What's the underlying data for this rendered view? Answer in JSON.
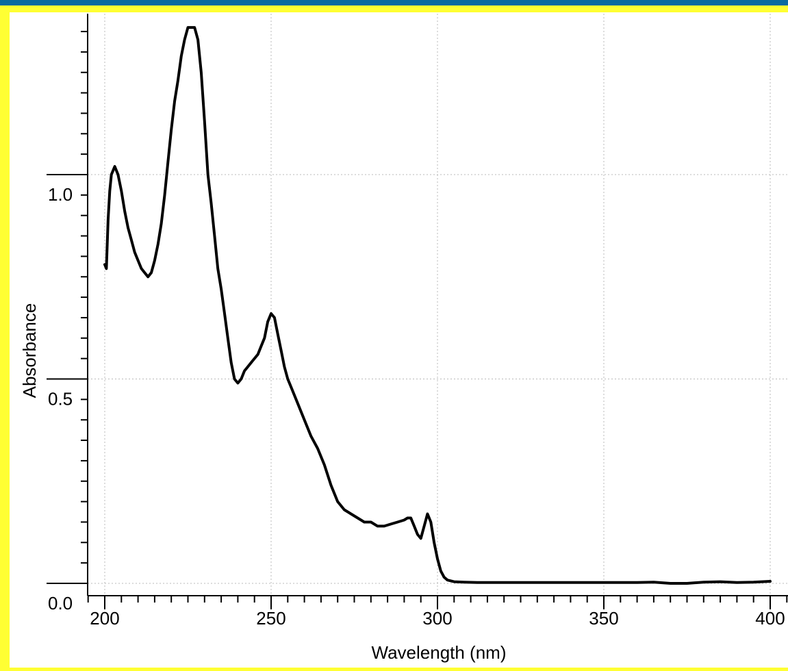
{
  "colors": {
    "outer_border": "#0a6aa0",
    "inner_border": "#ffff33",
    "plot_background": "#ffffff",
    "grid": "#b8b8b8",
    "axis": "#000000",
    "series_line": "#000000"
  },
  "chart_data": {
    "type": "line",
    "title": "",
    "xlabel": "Wavelength (nm)",
    "ylabel": "Absorbance",
    "xlim": [
      195,
      405
    ],
    "ylim": [
      -0.02,
      1.4
    ],
    "x_ticks": [
      200,
      250,
      300,
      350,
      400
    ],
    "x_tick_labels": [
      "200",
      "250",
      "300",
      "350",
      "400"
    ],
    "y_ticks": [
      0.0,
      0.5,
      1.0
    ],
    "y_tick_labels": [
      "0.0",
      "0.5",
      "1.0"
    ],
    "grid": true,
    "legend": "none",
    "series": [
      {
        "x": [
          200,
          200.5,
          201,
          201.5,
          202,
          203,
          204,
          205,
          206,
          207,
          208,
          209,
          210,
          211,
          212,
          213,
          214,
          215,
          216,
          217,
          218,
          219,
          220,
          221,
          222,
          223,
          224,
          225,
          226,
          227,
          228,
          229,
          230,
          231,
          232,
          233,
          234,
          235,
          236,
          237,
          238,
          239,
          240,
          241,
          242,
          243,
          244,
          245,
          246,
          247,
          248,
          249,
          250,
          251,
          252,
          253,
          254,
          255,
          256,
          258,
          260,
          262,
          264,
          266,
          268,
          270,
          272,
          274,
          276,
          278,
          280,
          282,
          284,
          286,
          288,
          290,
          291,
          292,
          293,
          294,
          295,
          296,
          297,
          298,
          299,
          300,
          301,
          302,
          303,
          305,
          308,
          312,
          320,
          330,
          340,
          350,
          360,
          365,
          370,
          375,
          380,
          385,
          390,
          395,
          400
        ],
        "y": [
          0.78,
          0.77,
          0.89,
          0.96,
          1.0,
          1.02,
          1.0,
          0.96,
          0.91,
          0.87,
          0.84,
          0.81,
          0.79,
          0.77,
          0.76,
          0.75,
          0.76,
          0.79,
          0.83,
          0.88,
          0.95,
          1.03,
          1.11,
          1.18,
          1.23,
          1.29,
          1.33,
          1.36,
          1.36,
          1.36,
          1.33,
          1.25,
          1.13,
          1.0,
          0.93,
          0.85,
          0.77,
          0.72,
          0.66,
          0.6,
          0.54,
          0.5,
          0.49,
          0.5,
          0.52,
          0.53,
          0.54,
          0.55,
          0.56,
          0.58,
          0.6,
          0.64,
          0.66,
          0.65,
          0.61,
          0.57,
          0.53,
          0.5,
          0.48,
          0.44,
          0.4,
          0.36,
          0.33,
          0.29,
          0.24,
          0.2,
          0.18,
          0.17,
          0.16,
          0.15,
          0.15,
          0.14,
          0.14,
          0.145,
          0.15,
          0.155,
          0.16,
          0.16,
          0.14,
          0.12,
          0.11,
          0.14,
          0.17,
          0.15,
          0.1,
          0.06,
          0.03,
          0.015,
          0.008,
          0.004,
          0.003,
          0.002,
          0.002,
          0.002,
          0.002,
          0.002,
          0.002,
          0.003,
          0.0,
          0.0,
          0.003,
          0.004,
          0.002,
          0.003,
          0.005
        ]
      }
    ]
  }
}
